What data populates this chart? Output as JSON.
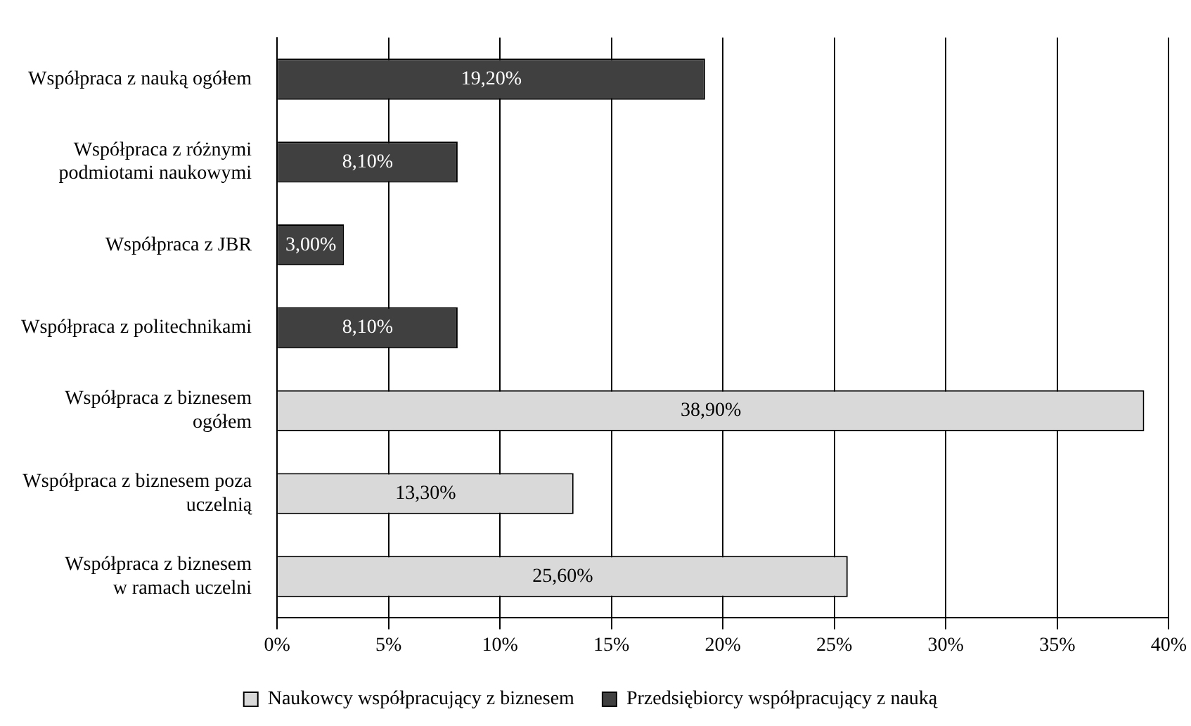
{
  "chart_data": {
    "type": "bar",
    "orientation": "horizontal",
    "categories": [
      "Współpraca z nauką ogółem",
      "Współpraca z różnymi\npodmiotami naukowymi",
      "Współpraca z JBR",
      "Współpraca z politechnikami",
      "Współpraca z biznesem\nogółem",
      "Współpraca z biznesem poza\nuczelnią",
      "Współpraca z biznesem\nw ramach uczelni"
    ],
    "series": [
      {
        "name": "Naukowcy współpracujący z biznesem",
        "color": "#d9d9d9",
        "values": [
          null,
          null,
          null,
          null,
          38.9,
          13.3,
          25.6
        ],
        "value_labels": [
          null,
          null,
          null,
          null,
          "38,90%",
          "13,30%",
          "25,60%"
        ]
      },
      {
        "name": "Przedsiębiorcy współpracujący z nauką",
        "color": "#404040",
        "values": [
          19.2,
          8.1,
          3.0,
          8.1,
          null,
          null,
          null
        ],
        "value_labels": [
          "19,20%",
          "8,10%",
          "3,00%",
          "8,10%",
          null,
          null,
          null
        ]
      }
    ],
    "xlim": [
      0,
      40
    ],
    "xticks": [
      {
        "value": 0,
        "label": "0%"
      },
      {
        "value": 5,
        "label": "5%"
      },
      {
        "value": 10,
        "label": "10%"
      },
      {
        "value": 15,
        "label": "15%"
      },
      {
        "value": 20,
        "label": "20%"
      },
      {
        "value": 25,
        "label": "25%"
      },
      {
        "value": 30,
        "label": "30%"
      },
      {
        "value": 35,
        "label": "35%"
      },
      {
        "value": 40,
        "label": "40%"
      }
    ],
    "grid": "x",
    "legend": "bottom"
  }
}
